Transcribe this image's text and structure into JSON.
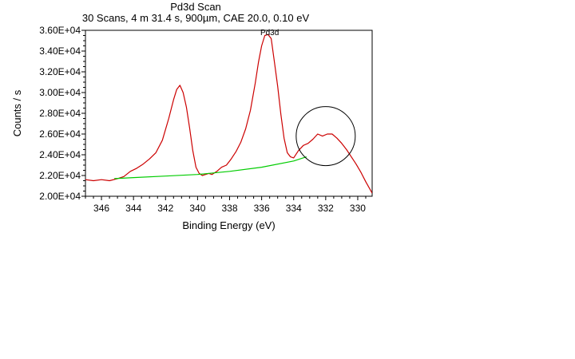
{
  "chart_data": {
    "type": "line",
    "title": "Pd3d Scan",
    "subtitle": "30 Scans,  4 m 31.4 s,  900µm,  CAE 20.0,  0.10 eV",
    "xlabel": "Binding Energy (eV)",
    "ylabel": "Counts / s",
    "xlim": [
      347.0,
      329.1
    ],
    "ylim": [
      20000,
      36000
    ],
    "x_reversed": true,
    "grid": false,
    "x_ticks": [
      346,
      344,
      342,
      340,
      338,
      336,
      334,
      332,
      330
    ],
    "y_ticks": [
      20000,
      22000,
      24000,
      26000,
      28000,
      30000,
      32000,
      34000,
      36000
    ],
    "y_tick_labels": [
      "2.00E+04",
      "2.20E+04",
      "2.40E+04",
      "2.60E+04",
      "2.80E+04",
      "3.00E+04",
      "3.20E+04",
      "3.40E+04",
      "3.60E+04"
    ],
    "annotations": [
      {
        "text": "Pd3d",
        "x": 335.5,
        "y": 35700
      }
    ],
    "highlight_circle": {
      "x": 332.0,
      "y": 25800,
      "shape": "circle"
    },
    "series": [
      {
        "color": "#cc0000",
        "x": [
          347.0,
          346.5,
          346.0,
          345.5,
          345.0,
          344.6,
          344.2,
          343.8,
          343.4,
          343.0,
          342.6,
          342.2,
          341.8,
          341.5,
          341.3,
          341.1,
          340.9,
          340.7,
          340.5,
          340.3,
          340.1,
          339.9,
          339.7,
          339.5,
          339.3,
          339.1,
          338.8,
          338.5,
          338.2,
          337.9,
          337.6,
          337.3,
          337.0,
          336.7,
          336.4,
          336.2,
          336.0,
          335.8,
          335.6,
          335.4,
          335.2,
          335.0,
          334.8,
          334.6,
          334.4,
          334.2,
          334.0,
          333.7,
          333.4,
          333.1,
          332.8,
          332.5,
          332.2,
          331.9,
          331.6,
          331.3,
          331.0,
          330.7,
          330.4,
          330.1,
          329.8,
          329.5,
          329.1
        ],
        "y": [
          21600,
          21500,
          21600,
          21500,
          21700,
          21900,
          22400,
          22700,
          23100,
          23600,
          24200,
          25400,
          27500,
          29300,
          30300,
          30700,
          30000,
          28600,
          26600,
          24400,
          22800,
          22200,
          22000,
          22100,
          22200,
          22100,
          22400,
          22800,
          23000,
          23600,
          24300,
          25200,
          26500,
          28300,
          30900,
          32900,
          34500,
          35500,
          35600,
          35200,
          32900,
          30600,
          27900,
          25600,
          24200,
          23800,
          23700,
          24400,
          24900,
          25100,
          25500,
          26000,
          25800,
          26000,
          26000,
          25600,
          25100,
          24500,
          23800,
          23100,
          22300,
          21400,
          20300
        ]
      },
      {
        "color": "#00cc00",
        "x": [
          345.2,
          344.0,
          342.0,
          340.0,
          338.0,
          336.0,
          334.0,
          333.2
        ],
        "y": [
          21700,
          21800,
          21950,
          22100,
          22400,
          22800,
          23400,
          23800
        ]
      }
    ]
  }
}
